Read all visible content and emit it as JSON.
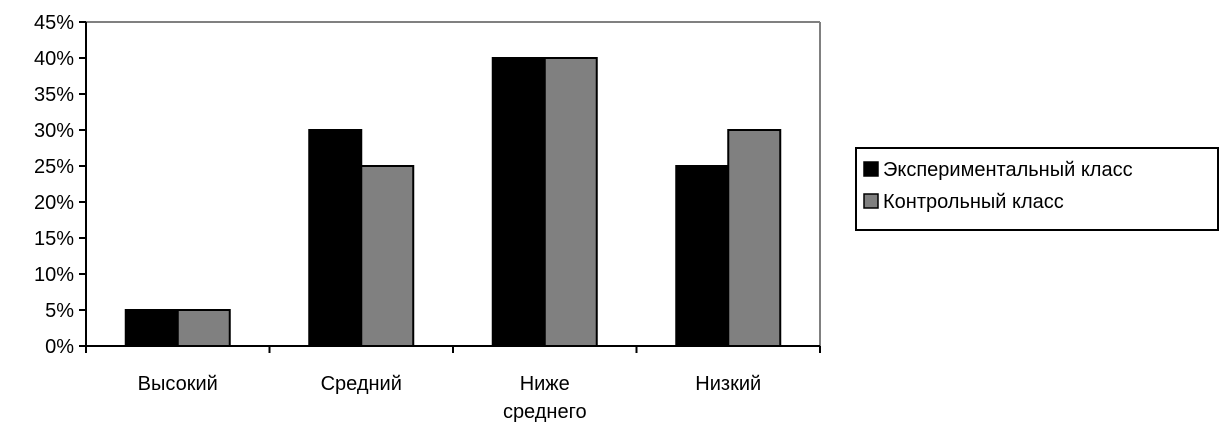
{
  "chart_data": {
    "type": "bar",
    "categories": [
      "Высокий",
      "Средний",
      "Ниже среднего",
      "Низкий"
    ],
    "category_lines": [
      [
        "Высокий"
      ],
      [
        "Средний"
      ],
      [
        "Ниже",
        "среднего"
      ],
      [
        "Низкий"
      ]
    ],
    "series": [
      {
        "name": "Экспериментальный класс",
        "values": [
          5,
          30,
          40,
          25
        ],
        "color": "#000000"
      },
      {
        "name": "Контрольный класс",
        "values": [
          5,
          25,
          40,
          30
        ],
        "color": "#808080"
      }
    ],
    "ylim": [
      0,
      45
    ],
    "yticks": [
      0,
      5,
      10,
      15,
      20,
      25,
      30,
      35,
      40,
      45
    ],
    "ytick_labels": [
      "0%",
      "5%",
      "10%",
      "15%",
      "20%",
      "25%",
      "30%",
      "35%",
      "40%",
      "45%"
    ],
    "grid": false,
    "legend_position": "right",
    "plot_border_color": "#808080"
  }
}
